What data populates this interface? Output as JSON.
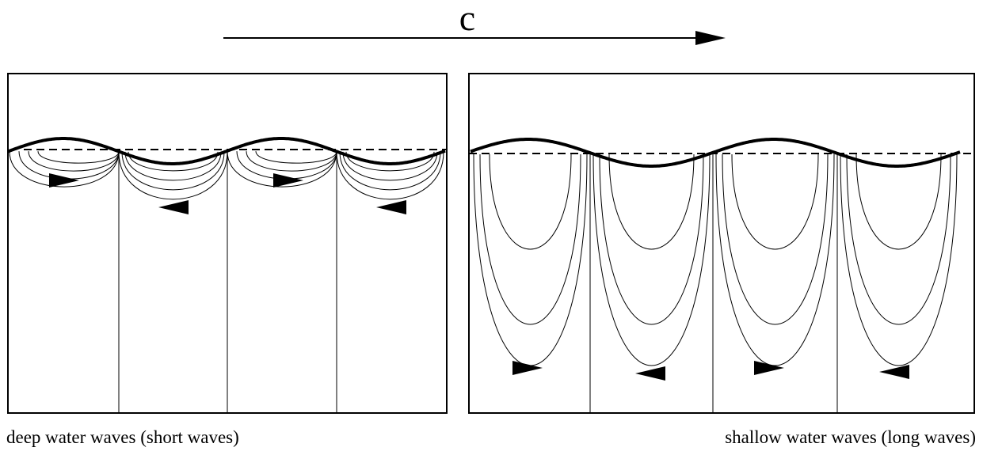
{
  "speed_label": "c",
  "panels": [
    {
      "caption": "deep water waves (short waves)"
    },
    {
      "caption": "shallow water waves (long waves)"
    }
  ]
}
